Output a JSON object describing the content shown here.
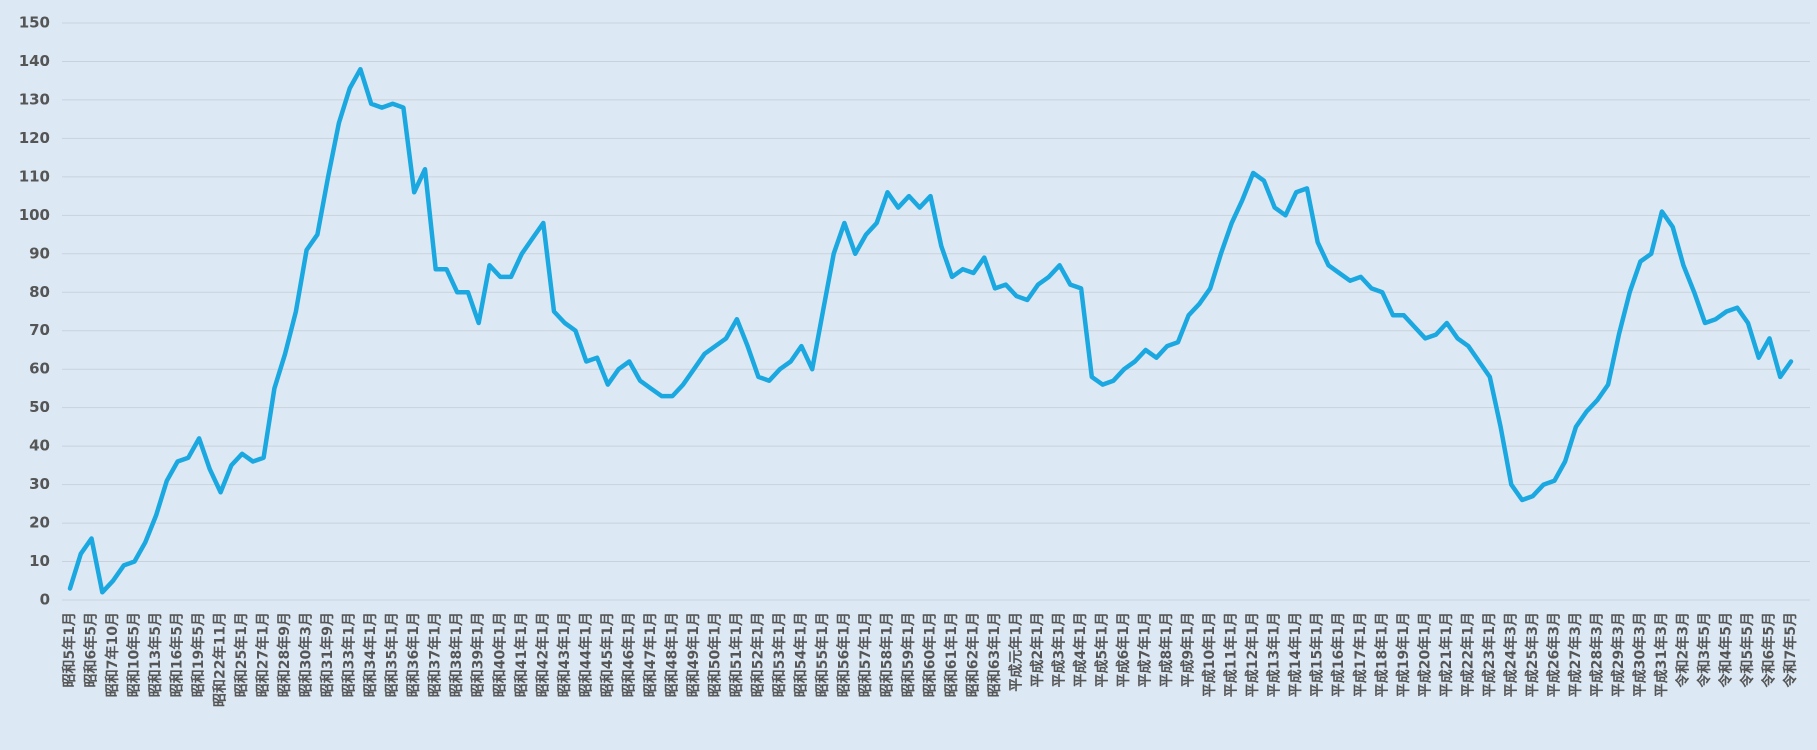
{
  "chart_data": {
    "type": "line",
    "categories": [
      "昭和5年1月",
      null,
      "昭和6年5月",
      null,
      "昭和7年10月",
      null,
      "昭和10年5月",
      null,
      "昭和13年5月",
      null,
      "昭和16年5月",
      null,
      "昭和19年5月",
      null,
      "昭和22年11月",
      null,
      "昭和25年1月",
      null,
      "昭和27年1月",
      null,
      "昭和28年9月",
      null,
      "昭和30年3月",
      null,
      "昭和31年9月",
      null,
      "昭和33年1月",
      null,
      "昭和34年1月",
      null,
      "昭和35年1月",
      null,
      "昭和36年1月",
      null,
      "昭和37年1月",
      null,
      "昭和38年1月",
      null,
      "昭和39年1月",
      null,
      "昭和40年1月",
      null,
      "昭和41年1月",
      null,
      "昭和42年1月",
      null,
      "昭和43年1月",
      null,
      "昭和44年1月",
      null,
      "昭和45年1月",
      null,
      "昭和46年1月",
      null,
      "昭和47年1月",
      null,
      "昭和48年1月",
      null,
      "昭和49年1月",
      null,
      "昭和50年1月",
      null,
      "昭和51年1月",
      null,
      "昭和52年1月",
      null,
      "昭和53年1月",
      null,
      "昭和54年1月",
      null,
      "昭和55年1月",
      null,
      "昭和56年1月",
      null,
      "昭和57年1月",
      null,
      "昭和58年1月",
      null,
      "昭和59年1月",
      null,
      "昭和60年1月",
      null,
      "昭和61年1月",
      null,
      "昭和62年1月",
      null,
      "昭和63年1月",
      null,
      "平成元年1月",
      null,
      "平成2年1月",
      null,
      "平成3年1月",
      null,
      "平成4年1月",
      null,
      "平成5年1月",
      null,
      "平成6年1月",
      null,
      "平成7年1月",
      null,
      "平成8年1月",
      null,
      "平成9年1月",
      null,
      "平成10年1月",
      null,
      "平成11年1月",
      null,
      "平成12年1月",
      null,
      "平成13年1月",
      null,
      "平成14年1月",
      null,
      "平成15年1月",
      null,
      "平成16年1月",
      null,
      "平成17年1月",
      null,
      "平成18年1月",
      null,
      "平成19年1月",
      null,
      "平成20年1月",
      null,
      "平成21年1月",
      null,
      "平成22年1月",
      null,
      "平成23年1月",
      null,
      "平成24年3月",
      null,
      "平成25年3月",
      null,
      "平成26年3月",
      null,
      "平成27年3月",
      null,
      "平成28年3月",
      null,
      "平成29年3月",
      null,
      "平成30年3月",
      null,
      "平成31年3月",
      null,
      "令和2年3月",
      null,
      "令和3年5月",
      null,
      "令和4年5月",
      null,
      "令和5年5月",
      null,
      "令和6年5月",
      null,
      "令和7年5月"
    ],
    "values": [
      3,
      12,
      16,
      2,
      5,
      9,
      10,
      15,
      22,
      31,
      36,
      37,
      42,
      34,
      28,
      35,
      38,
      36,
      37,
      55,
      64,
      75,
      91,
      95,
      110,
      124,
      133,
      138,
      129,
      128,
      129,
      128,
      106,
      112,
      86,
      86,
      80,
      80,
      72,
      87,
      84,
      84,
      90,
      94,
      98,
      75,
      72,
      70,
      62,
      63,
      56,
      60,
      62,
      57,
      55,
      53,
      53,
      56,
      60,
      64,
      66,
      68,
      73,
      66,
      58,
      57,
      60,
      62,
      66,
      60,
      75,
      90,
      98,
      90,
      95,
      98,
      106,
      102,
      105,
      102,
      105,
      92,
      84,
      86,
      85,
      89,
      81,
      82,
      79,
      78,
      82,
      84,
      87,
      82,
      81,
      58,
      56,
      57,
      60,
      62,
      65,
      63,
      66,
      67,
      74,
      77,
      81,
      90,
      98,
      104,
      111,
      109,
      102,
      100,
      106,
      107,
      93,
      87,
      85,
      83,
      84,
      81,
      80,
      74,
      74,
      71,
      68,
      69,
      72,
      68,
      66,
      62,
      58,
      45,
      30,
      26,
      27,
      30,
      31,
      36,
      45,
      49,
      52,
      56,
      69,
      80,
      88,
      90,
      101,
      97,
      87,
      80,
      72,
      73,
      75,
      76,
      72,
      63,
      68,
      58,
      62
    ],
    "color": "#1ba8e0",
    "ylim": [
      0,
      150
    ],
    "yticks": [
      0,
      10,
      20,
      30,
      40,
      50,
      60,
      70,
      80,
      90,
      100,
      110,
      120,
      130,
      140,
      150
    ],
    "grid": true
  }
}
